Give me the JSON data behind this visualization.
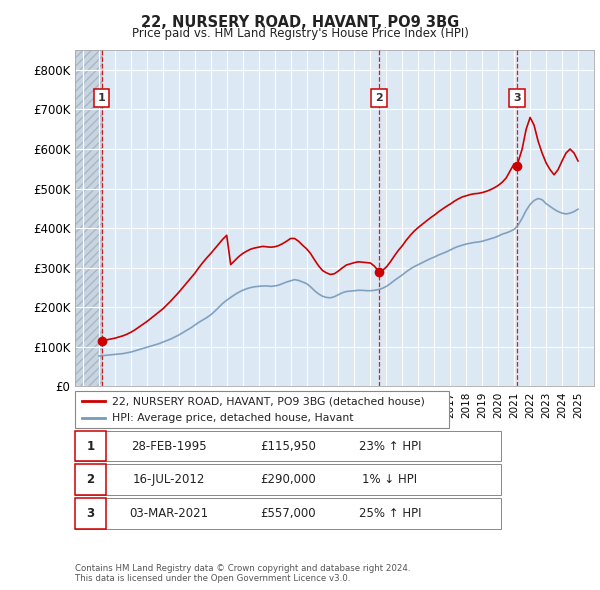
{
  "title": "22, NURSERY ROAD, HAVANT, PO9 3BG",
  "subtitle": "Price paid vs. HM Land Registry's House Price Index (HPI)",
  "ylim": [
    0,
    850000
  ],
  "yticks": [
    0,
    100000,
    200000,
    300000,
    400000,
    500000,
    600000,
    700000,
    800000
  ],
  "ytick_labels": [
    "£0",
    "£100K",
    "£200K",
    "£300K",
    "£400K",
    "£500K",
    "£600K",
    "£700K",
    "£800K"
  ],
  "xlim_start": 1993.5,
  "xlim_end": 2026.0,
  "sale_dates": [
    1995.16,
    2012.54,
    2021.17
  ],
  "sale_prices": [
    115950,
    290000,
    557000
  ],
  "sale_labels": [
    "1",
    "2",
    "3"
  ],
  "red_line_color": "#cc0000",
  "blue_line_color": "#7799bb",
  "dashed_line_color": "#cc0000",
  "background_plot": "#dce8f4",
  "grid_color": "#ffffff",
  "legend_label_red": "22, NURSERY ROAD, HAVANT, PO9 3BG (detached house)",
  "legend_label_blue": "HPI: Average price, detached house, Havant",
  "table_rows": [
    [
      "1",
      "28-FEB-1995",
      "£115,950",
      "23% ↑ HPI"
    ],
    [
      "2",
      "16-JUL-2012",
      "£290,000",
      "1% ↓ HPI"
    ],
    [
      "3",
      "03-MAR-2021",
      "£557,000",
      "25% ↑ HPI"
    ]
  ],
  "footer": "Contains HM Land Registry data © Crown copyright and database right 2024.\nThis data is licensed under the Open Government Licence v3.0.",
  "hpi_x": [
    1995.0,
    1995.25,
    1995.5,
    1995.75,
    1996.0,
    1996.25,
    1996.5,
    1996.75,
    1997.0,
    1997.25,
    1997.5,
    1997.75,
    1998.0,
    1998.25,
    1998.5,
    1998.75,
    1999.0,
    1999.25,
    1999.5,
    1999.75,
    2000.0,
    2000.25,
    2000.5,
    2000.75,
    2001.0,
    2001.25,
    2001.5,
    2001.75,
    2002.0,
    2002.25,
    2002.5,
    2002.75,
    2003.0,
    2003.25,
    2003.5,
    2003.75,
    2004.0,
    2004.25,
    2004.5,
    2004.75,
    2005.0,
    2005.25,
    2005.5,
    2005.75,
    2006.0,
    2006.25,
    2006.5,
    2006.75,
    2007.0,
    2007.25,
    2007.5,
    2007.75,
    2008.0,
    2008.25,
    2008.5,
    2008.75,
    2009.0,
    2009.25,
    2009.5,
    2009.75,
    2010.0,
    2010.25,
    2010.5,
    2010.75,
    2011.0,
    2011.25,
    2011.5,
    2011.75,
    2012.0,
    2012.25,
    2012.5,
    2012.75,
    2013.0,
    2013.25,
    2013.5,
    2013.75,
    2014.0,
    2014.25,
    2014.5,
    2014.75,
    2015.0,
    2015.25,
    2015.5,
    2015.75,
    2016.0,
    2016.25,
    2016.5,
    2016.75,
    2017.0,
    2017.25,
    2017.5,
    2017.75,
    2018.0,
    2018.25,
    2018.5,
    2018.75,
    2019.0,
    2019.25,
    2019.5,
    2019.75,
    2020.0,
    2020.25,
    2020.5,
    2020.75,
    2021.0,
    2021.25,
    2021.5,
    2021.75,
    2022.0,
    2022.25,
    2022.5,
    2022.75,
    2023.0,
    2023.25,
    2023.5,
    2023.75,
    2024.0,
    2024.25,
    2024.5,
    2024.75,
    2025.0
  ],
  "hpi_y": [
    77000,
    78000,
    79000,
    80000,
    81000,
    82000,
    83000,
    85000,
    87000,
    90000,
    93000,
    96000,
    99000,
    102000,
    105000,
    108000,
    112000,
    116000,
    120000,
    125000,
    130000,
    136000,
    142000,
    148000,
    155000,
    162000,
    168000,
    174000,
    181000,
    190000,
    200000,
    210000,
    218000,
    225000,
    232000,
    238000,
    243000,
    247000,
    250000,
    252000,
    253000,
    254000,
    254000,
    253000,
    254000,
    256000,
    260000,
    264000,
    267000,
    270000,
    268000,
    264000,
    260000,
    252000,
    242000,
    234000,
    228000,
    225000,
    224000,
    227000,
    232000,
    237000,
    240000,
    241000,
    242000,
    243000,
    243000,
    242000,
    242000,
    243000,
    245000,
    248000,
    253000,
    260000,
    268000,
    275000,
    282000,
    290000,
    297000,
    303000,
    308000,
    313000,
    318000,
    323000,
    327000,
    332000,
    336000,
    340000,
    345000,
    350000,
    354000,
    357000,
    360000,
    362000,
    364000,
    365000,
    367000,
    370000,
    373000,
    376000,
    380000,
    385000,
    388000,
    392000,
    397000,
    408000,
    425000,
    445000,
    460000,
    470000,
    475000,
    472000,
    462000,
    455000,
    448000,
    442000,
    438000,
    436000,
    438000,
    442000,
    448000
  ],
  "price_x": [
    1995.0,
    1995.25,
    1995.5,
    1995.75,
    1996.0,
    1996.25,
    1996.5,
    1996.75,
    1997.0,
    1997.25,
    1997.5,
    1997.75,
    1998.0,
    1998.25,
    1998.5,
    1998.75,
    1999.0,
    1999.25,
    1999.5,
    1999.75,
    2000.0,
    2000.25,
    2000.5,
    2000.75,
    2001.0,
    2001.25,
    2001.5,
    2001.75,
    2002.0,
    2002.25,
    2002.5,
    2002.75,
    2003.0,
    2003.25,
    2003.5,
    2003.75,
    2004.0,
    2004.25,
    2004.5,
    2004.75,
    2005.0,
    2005.25,
    2005.5,
    2005.75,
    2006.0,
    2006.25,
    2006.5,
    2006.75,
    2007.0,
    2007.25,
    2007.5,
    2007.75,
    2008.0,
    2008.25,
    2008.5,
    2008.75,
    2009.0,
    2009.25,
    2009.5,
    2009.75,
    2010.0,
    2010.25,
    2010.5,
    2010.75,
    2011.0,
    2011.25,
    2011.5,
    2011.75,
    2012.0,
    2012.25,
    2012.54,
    2012.75,
    2013.0,
    2013.25,
    2013.5,
    2013.75,
    2014.0,
    2014.25,
    2014.5,
    2014.75,
    2015.0,
    2015.25,
    2015.5,
    2015.75,
    2016.0,
    2016.25,
    2016.5,
    2016.75,
    2017.0,
    2017.25,
    2017.5,
    2017.75,
    2018.0,
    2018.25,
    2018.5,
    2018.75,
    2019.0,
    2019.25,
    2019.5,
    2019.75,
    2020.0,
    2020.25,
    2020.5,
    2020.75,
    2021.0,
    2021.17,
    2021.5,
    2021.75,
    2022.0,
    2022.25,
    2022.5,
    2022.75,
    2023.0,
    2023.25,
    2023.5,
    2023.75,
    2024.0,
    2024.25,
    2024.5,
    2024.75,
    2025.0
  ],
  "price_y": [
    115950,
    116000,
    118000,
    120000,
    122000,
    125000,
    128000,
    132000,
    137000,
    143000,
    150000,
    157000,
    164000,
    172000,
    180000,
    188000,
    196000,
    206000,
    216000,
    227000,
    238000,
    250000,
    262000,
    274000,
    286000,
    300000,
    313000,
    325000,
    336000,
    348000,
    360000,
    372000,
    382000,
    308000,
    318000,
    328000,
    336000,
    342000,
    347000,
    350000,
    352000,
    354000,
    353000,
    352000,
    353000,
    356000,
    361000,
    367000,
    374000,
    374000,
    367000,
    357000,
    348000,
    336000,
    320000,
    305000,
    293000,
    287000,
    283000,
    285000,
    292000,
    300000,
    307000,
    310000,
    313000,
    315000,
    314000,
    313000,
    312000,
    304000,
    290000,
    293000,
    302000,
    315000,
    330000,
    344000,
    356000,
    370000,
    382000,
    393000,
    402000,
    410000,
    418000,
    426000,
    433000,
    441000,
    448000,
    455000,
    461000,
    468000,
    474000,
    479000,
    482000,
    485000,
    487000,
    488000,
    490000,
    493000,
    497000,
    502000,
    508000,
    516000,
    527000,
    545000,
    563000,
    557000,
    600000,
    650000,
    680000,
    660000,
    620000,
    590000,
    565000,
    548000,
    535000,
    548000,
    570000,
    590000,
    600000,
    590000,
    570000
  ]
}
